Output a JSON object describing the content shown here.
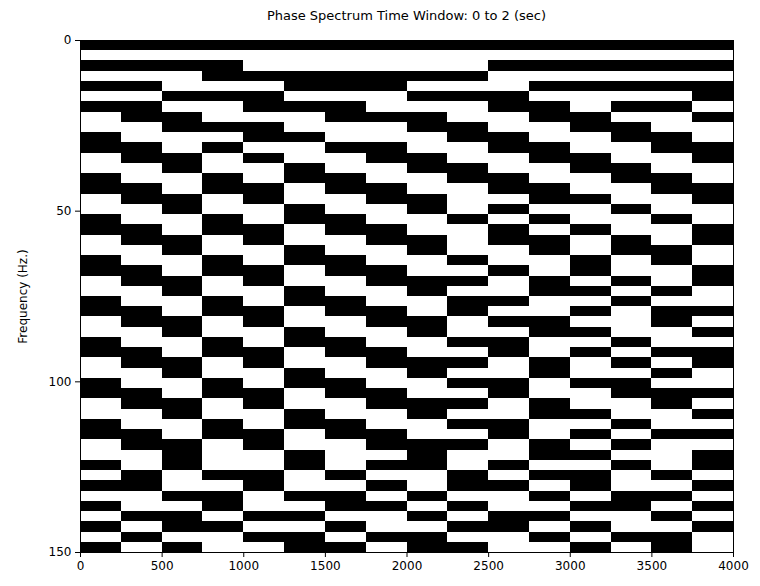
{
  "chart_data": {
    "type": "heatmap",
    "title": "Phase Spectrum Time Window: 0 to 2 (sec)",
    "y_label": "Frequency (Hz.)",
    "xlim": [
      0,
      4000
    ],
    "xticks": [
      0,
      500,
      1000,
      1500,
      2000,
      2500,
      3000,
      3500,
      4000
    ],
    "ylim": [
      150,
      0
    ],
    "yticks": [
      0,
      50,
      100,
      150
    ],
    "zlim": [
      0,
      1
    ],
    "x_bins": [
      0,
      250,
      500,
      750,
      1000,
      1250,
      1500,
      1750,
      2000,
      2250,
      2500,
      2750,
      3000,
      3250,
      3500,
      3750,
      4000
    ],
    "y_bins": [
      0,
      3,
      6,
      9,
      12,
      15,
      18,
      21,
      24,
      27,
      30,
      33,
      36,
      39,
      42,
      45,
      48,
      51,
      54,
      57,
      60,
      63,
      66,
      69,
      72,
      75,
      78,
      81,
      84,
      87,
      90,
      93,
      96,
      99,
      102,
      105,
      108,
      111,
      114,
      117,
      120,
      123,
      126,
      129,
      132,
      135,
      138,
      141,
      144,
      147,
      150
    ],
    "z": [
      [
        0,
        0,
        0,
        0,
        0,
        0,
        0,
        0,
        0,
        0,
        0,
        0,
        0,
        0,
        0,
        0
      ],
      [
        1,
        1,
        1,
        1,
        1,
        1,
        1,
        1,
        1,
        1,
        1,
        1,
        1,
        1,
        1,
        1
      ],
      [
        0,
        0,
        0,
        0,
        1,
        1,
        1,
        1,
        1,
        1,
        0,
        0,
        0,
        0,
        0,
        0
      ],
      [
        1,
        1,
        1,
        0,
        0,
        0,
        0,
        0,
        0,
        0,
        1,
        1,
        1,
        1,
        1,
        1
      ],
      [
        0,
        0,
        1,
        1,
        1,
        0,
        0,
        0,
        1,
        1,
        1,
        0,
        0,
        0,
        0,
        0
      ],
      [
        1,
        1,
        0,
        0,
        0,
        1,
        1,
        1,
        0,
        0,
        0,
        1,
        1,
        1,
        1,
        0
      ],
      [
        0,
        0,
        1,
        1,
        0,
        0,
        0,
        1,
        1,
        1,
        0,
        0,
        1,
        0,
        0,
        1
      ],
      [
        1,
        0,
        0,
        1,
        1,
        1,
        0,
        0,
        0,
        1,
        1,
        0,
        0,
        1,
        1,
        0
      ],
      [
        1,
        1,
        0,
        0,
        0,
        1,
        1,
        1,
        0,
        0,
        1,
        1,
        0,
        0,
        1,
        1
      ],
      [
        0,
        1,
        1,
        1,
        0,
        0,
        1,
        1,
        1,
        0,
        0,
        1,
        1,
        0,
        0,
        1
      ],
      [
        0,
        0,
        1,
        0,
        1,
        1,
        0,
        0,
        1,
        1,
        0,
        0,
        1,
        1,
        0,
        0
      ],
      [
        1,
        0,
        0,
        1,
        0,
        1,
        1,
        0,
        0,
        1,
        1,
        0,
        0,
        1,
        1,
        0
      ],
      [
        1,
        1,
        0,
        1,
        1,
        0,
        1,
        1,
        0,
        0,
        1,
        1,
        0,
        0,
        1,
        1
      ],
      [
        0,
        1,
        1,
        0,
        1,
        0,
        0,
        1,
        1,
        0,
        0,
        1,
        1,
        0,
        0,
        1
      ],
      [
        0,
        0,
        1,
        0,
        0,
        1,
        0,
        0,
        1,
        1,
        0,
        0,
        1,
        1,
        0,
        0
      ],
      [
        1,
        0,
        0,
        1,
        0,
        1,
        1,
        0,
        0,
        1,
        1,
        0,
        0,
        1,
        1,
        0
      ],
      [
        1,
        1,
        0,
        1,
        1,
        0,
        1,
        1,
        0,
        1,
        0,
        1,
        1,
        0,
        1,
        1
      ],
      [
        0,
        1,
        1,
        0,
        1,
        0,
        0,
        1,
        1,
        0,
        1,
        0,
        1,
        1,
        0,
        1
      ],
      [
        0,
        0,
        1,
        0,
        0,
        1,
        0,
        0,
        1,
        1,
        0,
        1,
        0,
        1,
        1,
        0
      ],
      [
        1,
        0,
        0,
        1,
        0,
        1,
        1,
        0,
        0,
        1,
        0,
        0,
        1,
        0,
        1,
        0
      ],
      [
        1,
        1,
        0,
        1,
        1,
        0,
        1,
        1,
        0,
        1,
        1,
        0,
        1,
        0,
        0,
        1
      ],
      [
        0,
        1,
        1,
        0,
        1,
        0,
        0,
        1,
        1,
        0,
        1,
        1,
        0,
        1,
        0,
        1
      ],
      [
        0,
        0,
        1,
        0,
        0,
        1,
        0,
        0,
        1,
        1,
        0,
        1,
        0,
        1,
        1,
        0
      ],
      [
        1,
        0,
        0,
        1,
        0,
        1,
        1,
        0,
        0,
        0,
        1,
        0,
        1,
        0,
        1,
        0
      ],
      [
        1,
        1,
        0,
        1,
        1,
        0,
        1,
        1,
        0,
        1,
        1,
        0,
        0,
        1,
        0,
        1
      ],
      [
        0,
        1,
        1,
        0,
        1,
        0,
        0,
        1,
        1,
        0,
        0,
        1,
        1,
        0,
        1,
        1
      ],
      [
        0,
        0,
        1,
        0,
        0,
        1,
        0,
        0,
        1,
        0,
        1,
        1,
        0,
        1,
        0,
        0
      ],
      [
        1,
        0,
        0,
        1,
        0,
        1,
        1,
        0,
        0,
        1,
        0,
        0,
        1,
        1,
        0,
        1
      ],
      [
        1,
        1,
        0,
        1,
        1,
        0,
        1,
        1,
        0,
        1,
        1,
        0,
        0,
        1,
        1,
        0
      ],
      [
        0,
        1,
        1,
        0,
        1,
        0,
        0,
        1,
        1,
        0,
        0,
        1,
        1,
        0,
        1,
        1
      ],
      [
        0,
        0,
        1,
        0,
        0,
        1,
        0,
        0,
        1,
        1,
        0,
        1,
        0,
        1,
        0,
        0
      ],
      [
        1,
        0,
        0,
        1,
        0,
        1,
        1,
        0,
        0,
        0,
        1,
        0,
        1,
        0,
        1,
        0
      ],
      [
        1,
        1,
        0,
        1,
        1,
        0,
        1,
        1,
        0,
        1,
        1,
        0,
        1,
        1,
        0,
        1
      ],
      [
        0,
        1,
        1,
        0,
        1,
        0,
        0,
        1,
        1,
        0,
        0,
        1,
        0,
        0,
        1,
        1
      ],
      [
        0,
        0,
        1,
        0,
        0,
        1,
        0,
        0,
        1,
        1,
        0,
        1,
        1,
        0,
        0,
        0
      ],
      [
        1,
        0,
        0,
        1,
        0,
        1,
        1,
        0,
        0,
        0,
        1,
        0,
        1,
        1,
        0,
        1
      ],
      [
        1,
        1,
        0,
        1,
        1,
        0,
        1,
        1,
        0,
        1,
        1,
        0,
        0,
        1,
        1,
        0
      ],
      [
        0,
        1,
        1,
        0,
        1,
        0,
        0,
        1,
        1,
        0,
        0,
        1,
        1,
        0,
        1,
        1
      ],
      [
        0,
        0,
        1,
        0,
        0,
        1,
        0,
        0,
        1,
        1,
        0,
        1,
        0,
        1,
        0,
        0
      ],
      [
        1,
        0,
        0,
        1,
        0,
        1,
        1,
        0,
        0,
        0,
        1,
        0,
        1,
        0,
        1,
        1
      ],
      [
        1,
        1,
        0,
        1,
        1,
        0,
        1,
        1,
        0,
        1,
        1,
        0,
        0,
        1,
        1,
        0
      ],
      [
        0,
        1,
        0,
        1,
        1,
        0,
        1,
        0,
        0,
        1,
        0,
        1,
        1,
        0,
        1,
        0
      ],
      [
        1,
        0,
        1,
        0,
        0,
        1,
        0,
        1,
        1,
        0,
        1,
        0,
        0,
        1,
        0,
        1
      ],
      [
        0,
        0,
        1,
        1,
        0,
        1,
        1,
        0,
        1,
        0,
        0,
        1,
        0,
        1,
        1,
        0
      ],
      [
        1,
        1,
        0,
        0,
        1,
        0,
        0,
        1,
        0,
        1,
        1,
        0,
        1,
        0,
        0,
        1
      ],
      [
        0,
        1,
        1,
        0,
        1,
        1,
        0,
        0,
        1,
        0,
        1,
        1,
        0,
        0,
        1,
        0
      ],
      [
        1,
        0,
        0,
        1,
        0,
        0,
        1,
        1,
        0,
        1,
        0,
        0,
        1,
        1,
        0,
        1
      ],
      [
        0,
        1,
        0,
        0,
        1,
        1,
        0,
        1,
        1,
        0,
        0,
        1,
        0,
        1,
        1,
        0
      ],
      [
        1,
        0,
        1,
        1,
        0,
        0,
        1,
        0,
        0,
        1,
        1,
        0,
        1,
        0,
        0,
        1
      ],
      [
        0,
        1,
        0,
        1,
        1,
        0,
        0,
        1,
        0,
        0,
        1,
        1,
        0,
        1,
        0,
        1
      ]
    ]
  }
}
